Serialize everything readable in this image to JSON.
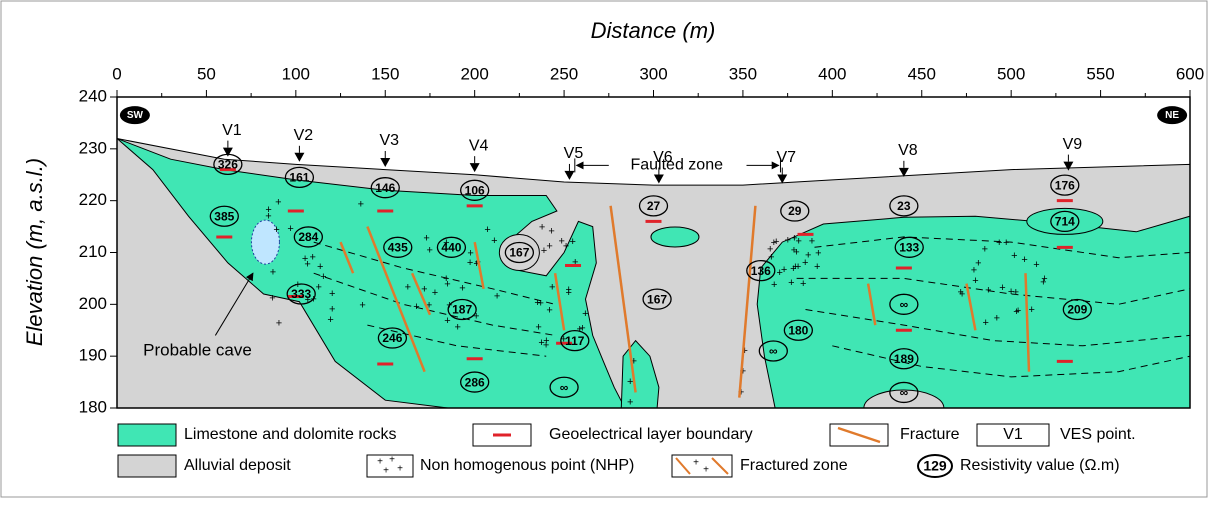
{
  "x_axis": {
    "title": "Distance (m)",
    "ticks": [
      0,
      50,
      100,
      150,
      200,
      250,
      300,
      350,
      400,
      450,
      500,
      550,
      600
    ]
  },
  "y_axis": {
    "title": "Elevation (m, a.s.l.)",
    "ticks": [
      180,
      190,
      200,
      210,
      220,
      230,
      240
    ]
  },
  "orientation": {
    "left": "SW",
    "right": "NE"
  },
  "ves_points": [
    "V1",
    "V2",
    "V3",
    "V4",
    "V5",
    "V6",
    "V7",
    "V8",
    "V9"
  ],
  "faulted_zone": "Faulted zone",
  "annotation": "Probable cave",
  "resistivity_values": [
    "326",
    "161",
    "146",
    "106",
    "385",
    "284",
    "435",
    "440",
    "167",
    "333",
    "187",
    "246",
    "117",
    "286",
    "∞",
    "27",
    "167",
    "29",
    "136",
    "∞",
    "180",
    "23",
    "133",
    "∞",
    "189",
    "∞",
    "176",
    "714",
    "209"
  ],
  "legend": [
    {
      "label": "Limestone and dolomite rocks"
    },
    {
      "label": "Geoelectrical layer boundary"
    },
    {
      "label": "Fracture"
    },
    {
      "symbol": "V1",
      "label": "VES point."
    },
    {
      "label": "Alluvial deposit"
    },
    {
      "label": "Non homogenous point (NHP)"
    },
    {
      "label": "Fractured zone"
    },
    {
      "symbol": "129",
      "label": "Resistivity value (Ω.m)"
    }
  ]
}
